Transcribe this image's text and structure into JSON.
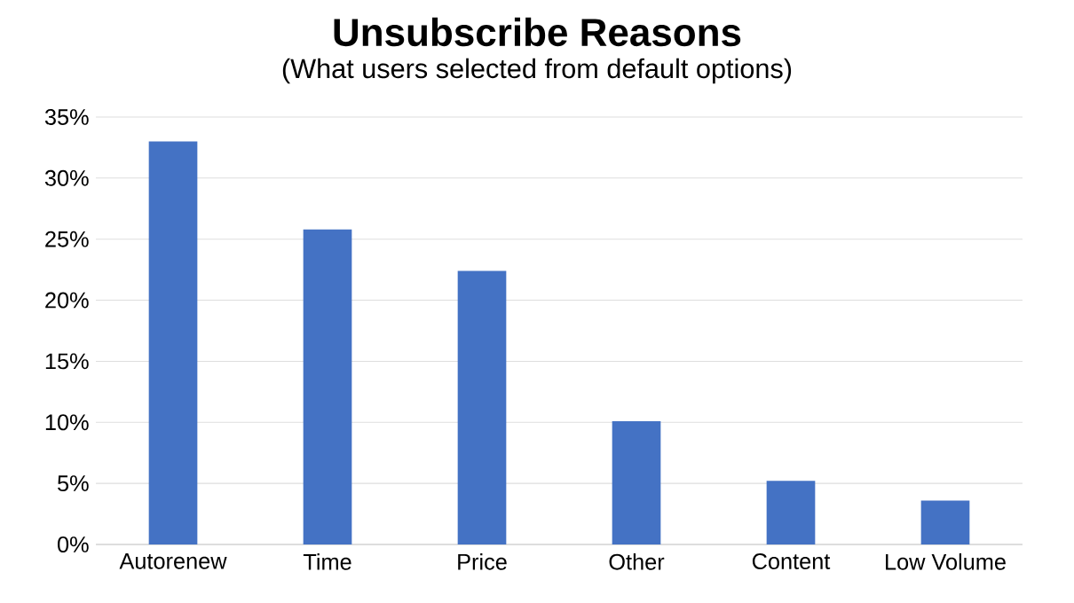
{
  "chart_data": {
    "type": "bar",
    "title": "Unsubscribe Reasons",
    "subtitle": "(What users selected from default options)",
    "categories": [
      "Autorenew",
      "Time",
      "Price",
      "Other",
      "Content",
      "Low Volume"
    ],
    "values": [
      33,
      25.8,
      22.4,
      10.1,
      5.2,
      3.6
    ],
    "color": "#4472c4",
    "ylim": [
      0,
      35
    ],
    "yticks": [
      {
        "value": 0,
        "label": "0%"
      },
      {
        "value": 5,
        "label": "5%"
      },
      {
        "value": 10,
        "label": "10%"
      },
      {
        "value": 15,
        "label": "15%"
      },
      {
        "value": 20,
        "label": "20%"
      },
      {
        "value": 25,
        "label": "25%"
      },
      {
        "value": 30,
        "label": "30%"
      },
      {
        "value": 35,
        "label": "35%"
      }
    ],
    "grid": "y"
  }
}
